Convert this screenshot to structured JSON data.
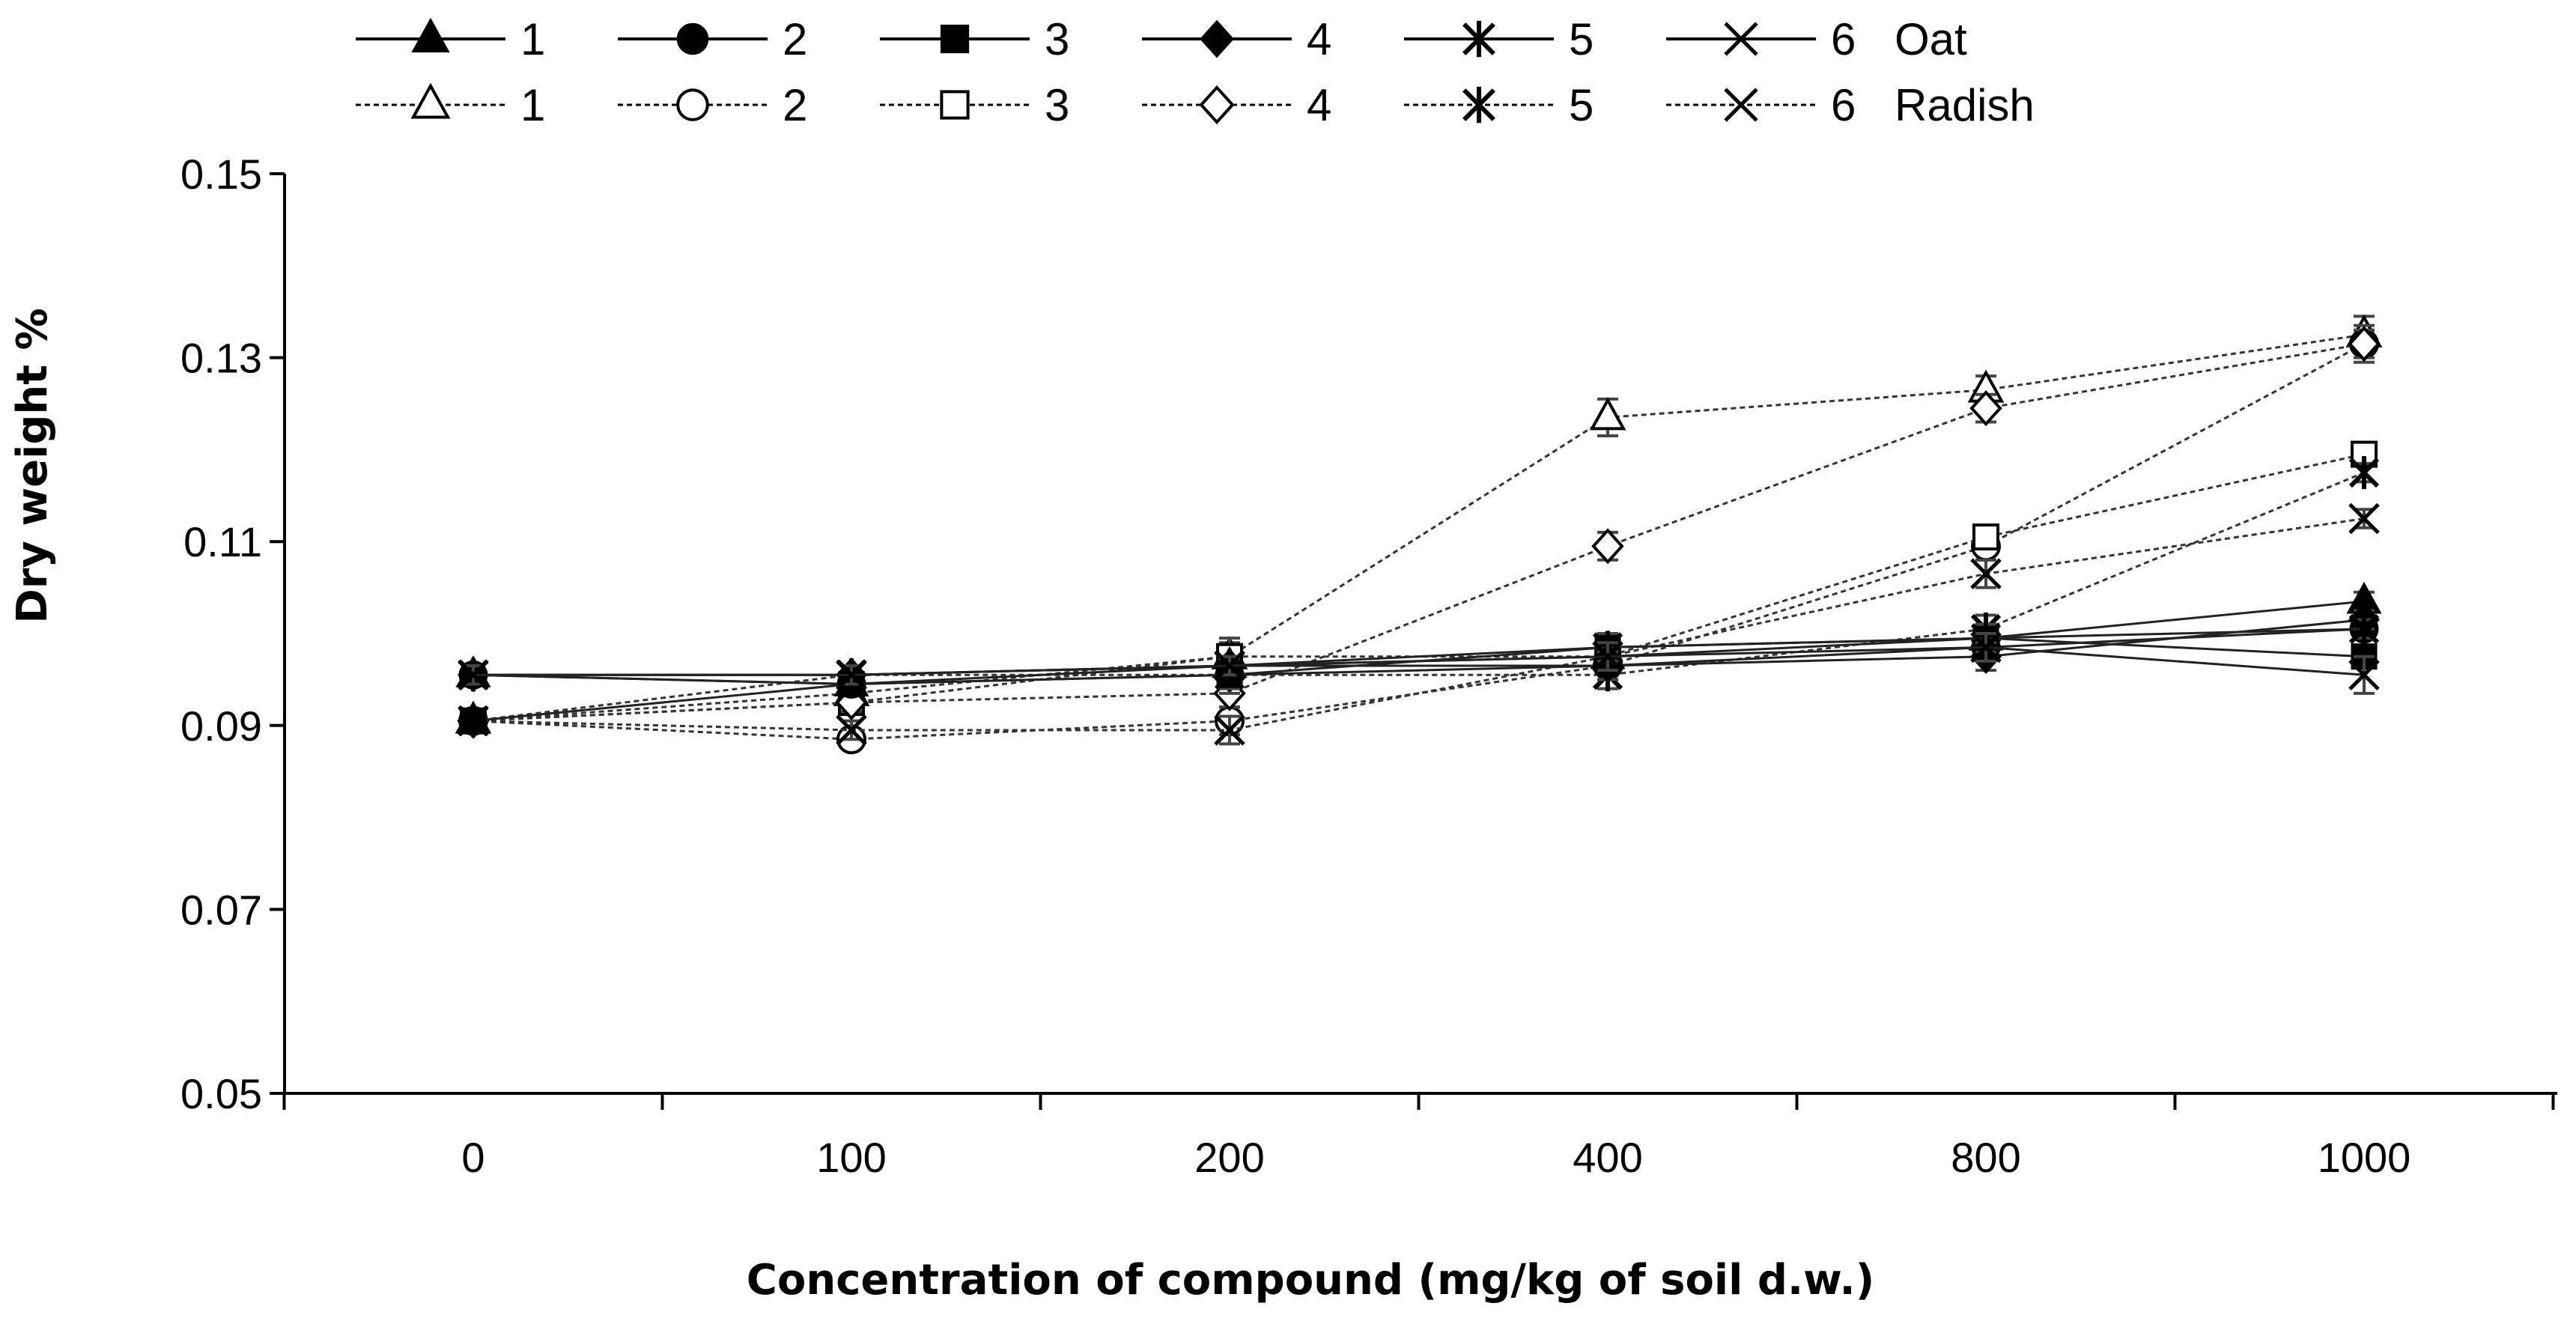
{
  "chart_data": {
    "type": "line",
    "title": "",
    "xlabel": "Concentration of compound (mg/kg of soil d.w.)",
    "ylabel": "Dry weight %",
    "categories": [
      "0",
      "100",
      "200",
      "400",
      "800",
      "1000"
    ],
    "ylim": [
      0.05,
      0.15
    ],
    "yticks": [
      "0.05",
      "0.07",
      "0.09",
      "0.11",
      "0.13",
      "0.15"
    ],
    "grid": false,
    "legend_position": "top",
    "groups": [
      {
        "name": "Oat",
        "line_style": "solid"
      },
      {
        "name": "Radish",
        "line_style": "dotted"
      }
    ],
    "series": [
      {
        "name": "1",
        "group": "Oat",
        "marker": "triangle-filled",
        "values": [
          0.0955,
          0.0945,
          0.0965,
          0.0975,
          0.0995,
          0.1035
        ],
        "errors": [
          0.001,
          0.001,
          0.001,
          0.0015,
          0.0015,
          0.001
        ]
      },
      {
        "name": "2",
        "group": "Oat",
        "marker": "circle-filled",
        "values": [
          0.0955,
          0.0945,
          0.0955,
          0.0965,
          0.0985,
          0.1005
        ],
        "errors": [
          0.001,
          0.001,
          0.001,
          0.0015,
          0.0015,
          0.001
        ]
      },
      {
        "name": "3",
        "group": "Oat",
        "marker": "square-filled",
        "values": [
          0.0905,
          0.0945,
          0.0955,
          0.0985,
          0.0995,
          0.0975
        ],
        "errors": [
          0.001,
          0.001,
          0.0015,
          0.0015,
          0.0015,
          0.001
        ]
      },
      {
        "name": "4",
        "group": "Oat",
        "marker": "diamond-filled",
        "values": [
          0.0955,
          0.0955,
          0.0965,
          0.0965,
          0.0975,
          0.1015
        ],
        "errors": [
          0.001,
          0.001,
          0.001,
          0.0015,
          0.0015,
          0.001
        ]
      },
      {
        "name": "5",
        "group": "Oat",
        "marker": "asterisk",
        "values": [
          0.0955,
          0.0955,
          0.0965,
          0.0985,
          0.0995,
          0.1005
        ],
        "errors": [
          0.001,
          0.001,
          0.001,
          0.0015,
          0.0015,
          0.001
        ]
      },
      {
        "name": "6",
        "group": "Oat",
        "marker": "x",
        "values": [
          0.0955,
          0.0955,
          0.0965,
          0.0975,
          0.0985,
          0.0955
        ],
        "errors": [
          0.001,
          0.001,
          0.001,
          0.0015,
          0.0015,
          0.002
        ]
      },
      {
        "name": "1",
        "group": "Radish",
        "marker": "triangle-open",
        "values": [
          0.0905,
          0.0935,
          0.0975,
          0.1235,
          0.1265,
          0.1325
        ],
        "errors": [
          0.001,
          0.001,
          0.0015,
          0.002,
          0.0015,
          0.002
        ]
      },
      {
        "name": "2",
        "group": "Radish",
        "marker": "circle-open",
        "values": [
          0.0905,
          0.0885,
          0.0905,
          0.0965,
          0.1095,
          0.1315
        ],
        "errors": [
          0.001,
          0.001,
          0.0015,
          0.0015,
          0.0015,
          0.002
        ]
      },
      {
        "name": "3",
        "group": "Radish",
        "marker": "square-open",
        "values": [
          0.0905,
          0.0925,
          0.0975,
          0.0975,
          0.1105,
          0.1195
        ],
        "errors": [
          0.001,
          0.001,
          0.002,
          0.0015,
          0.001,
          0.001
        ]
      },
      {
        "name": "4",
        "group": "Radish",
        "marker": "diamond-open",
        "values": [
          0.0905,
          0.0925,
          0.0935,
          0.1095,
          0.1245,
          0.1315
        ],
        "errors": [
          0.001,
          0.001,
          0.0015,
          0.0015,
          0.0015,
          0.0015
        ]
      },
      {
        "name": "5",
        "group": "Radish",
        "marker": "asterisk",
        "values": [
          0.0905,
          0.0955,
          0.0955,
          0.0955,
          0.1005,
          0.1175
        ],
        "errors": [
          0.001,
          0.001,
          0.002,
          0.0015,
          0.0015,
          0.001
        ]
      },
      {
        "name": "6",
        "group": "Radish",
        "marker": "x",
        "values": [
          0.0905,
          0.0895,
          0.0895,
          0.0975,
          0.1065,
          0.1125
        ],
        "errors": [
          0.001,
          0.001,
          0.0015,
          0.0015,
          0.0015,
          0.001
        ]
      }
    ]
  }
}
